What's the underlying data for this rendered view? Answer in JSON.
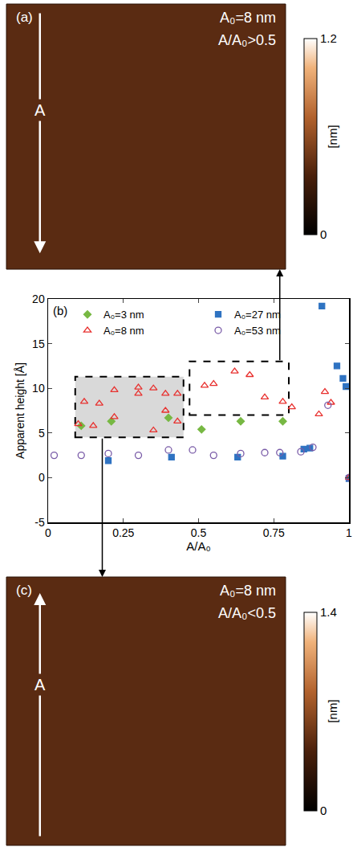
{
  "chart_data": [
    {
      "type": "image",
      "panel": "(a)",
      "annotations": [
        "A₀=8 nm",
        "A/A₀>0.5"
      ],
      "arrow_label": "A",
      "arrow_direction": "down",
      "colorbar": {
        "range": [
          0,
          1.2
        ],
        "ticks": [
          0,
          1.2
        ],
        "label": "[nm]"
      }
    },
    {
      "type": "scatter",
      "panel": "(b)",
      "xlabel": "A/A₀",
      "ylabel": "Apparent height [Å]",
      "xlim": [
        0,
        1
      ],
      "xticks": [
        0,
        0.25,
        0.5,
        0.75,
        1
      ],
      "ylim": [
        -5,
        20
      ],
      "yticks": [
        -5,
        0,
        5,
        10,
        15,
        20
      ],
      "grid": false,
      "legend": "upper left",
      "series": [
        {
          "name": "A₀=3 nm",
          "color": "#77b843",
          "marker": "diamond",
          "x": [
            0.11,
            0.21,
            0.4,
            0.51,
            0.64,
            0.78
          ],
          "values": [
            5.8,
            6.3,
            6.7,
            5.4,
            6.3,
            6.3
          ]
        },
        {
          "name": "A₀=27 nm",
          "color": "#2f73c2",
          "marker": "square",
          "x": [
            0.2,
            0.41,
            0.63,
            0.78,
            0.85,
            0.87,
            0.91,
            0.96,
            0.98,
            0.99,
            1.0
          ],
          "values": [
            1.9,
            2.3,
            2.3,
            2.4,
            3.2,
            3.3,
            19.2,
            12.5,
            11.1,
            10.2,
            -0.1
          ]
        },
        {
          "name": "A₀=8 nm",
          "color": "#e8302e",
          "marker": "triangle-up-open",
          "x": [
            0.1,
            0.12,
            0.15,
            0.17,
            0.22,
            0.22,
            0.3,
            0.3,
            0.35,
            0.35,
            0.39,
            0.39,
            0.43,
            0.43,
            0.52,
            0.55,
            0.62,
            0.67,
            0.72,
            0.78,
            0.81,
            0.9,
            0.92,
            0.94,
            1.0
          ],
          "values": [
            6.0,
            8.5,
            5.8,
            8.3,
            9.8,
            6.8,
            10.1,
            9.4,
            10.0,
            5.3,
            9.4,
            7.5,
            9.4,
            6.3,
            10.3,
            10.5,
            11.9,
            11.5,
            9.0,
            8.5,
            7.9,
            7.1,
            9.6,
            8.4,
            0.0
          ]
        },
        {
          "name": "A₀=53 nm",
          "color": "#7a5ca8",
          "marker": "circle-open",
          "x": [
            0.02,
            0.11,
            0.2,
            0.3,
            0.4,
            0.48,
            0.55,
            0.64,
            0.72,
            0.77,
            0.84,
            0.88,
            0.93,
            1.0
          ],
          "values": [
            2.5,
            2.5,
            2.7,
            2.5,
            3.1,
            3.1,
            2.5,
            2.7,
            2.8,
            2.8,
            2.9,
            3.4,
            8.1,
            0.0
          ]
        }
      ],
      "boxes": [
        {
          "xlim": [
            0.09,
            0.45
          ],
          "ylim": [
            4.5,
            11.3
          ],
          "color": "#d9d9d9",
          "links_to": "(c)"
        },
        {
          "xlim": [
            0.47,
            0.8
          ],
          "ylim": [
            7.0,
            13.0
          ],
          "color": "#ffffff",
          "links_to": "(a)"
        }
      ]
    },
    {
      "type": "image",
      "panel": "(c)",
      "annotations": [
        "A₀=8 nm",
        "A/A₀<0.5"
      ],
      "arrow_label": "A",
      "arrow_direction": "up",
      "colorbar": {
        "range": [
          0,
          1.4
        ],
        "ticks": [
          0,
          1.4
        ],
        "label": "[nm]"
      }
    }
  ]
}
